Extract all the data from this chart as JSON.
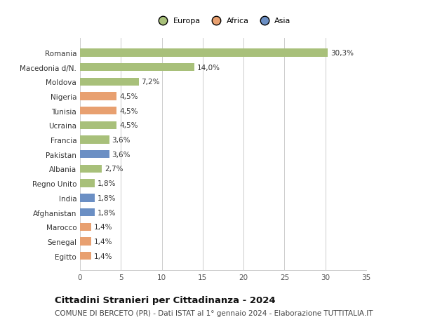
{
  "title": "Cittadini Stranieri per Cittadinanza - 2024",
  "subtitle": "COMUNE DI BERCETO (PR) - Dati ISTAT al 1° gennaio 2024 - Elaborazione TUTTITALIA.IT",
  "countries": [
    "Romania",
    "Macedonia d/N.",
    "Moldova",
    "Nigeria",
    "Tunisia",
    "Ucraina",
    "Francia",
    "Pakistan",
    "Albania",
    "Regno Unito",
    "India",
    "Afghanistan",
    "Marocco",
    "Senegal",
    "Egitto"
  ],
  "values": [
    30.3,
    14.0,
    7.2,
    4.5,
    4.5,
    4.5,
    3.6,
    3.6,
    2.7,
    1.8,
    1.8,
    1.8,
    1.4,
    1.4,
    1.4
  ],
  "labels": [
    "30,3%",
    "14,0%",
    "7,2%",
    "4,5%",
    "4,5%",
    "4,5%",
    "3,6%",
    "3,6%",
    "2,7%",
    "1,8%",
    "1,8%",
    "1,8%",
    "1,4%",
    "1,4%",
    "1,4%"
  ],
  "continents": [
    "Europa",
    "Europa",
    "Europa",
    "Africa",
    "Africa",
    "Europa",
    "Europa",
    "Asia",
    "Europa",
    "Europa",
    "Asia",
    "Asia",
    "Africa",
    "Africa",
    "Africa"
  ],
  "continent_colors": {
    "Europa": "#a8c07a",
    "Africa": "#e8a070",
    "Asia": "#6b8fc4"
  },
  "legend_items": [
    {
      "label": "Europa",
      "color": "#a8c07a"
    },
    {
      "label": "Africa",
      "color": "#e8a070"
    },
    {
      "label": "Asia",
      "color": "#6b8fc4"
    }
  ],
  "xlim": [
    0,
    35
  ],
  "xticks": [
    0,
    5,
    10,
    15,
    20,
    25,
    30,
    35
  ],
  "background_color": "#ffffff",
  "grid_color": "#cccccc",
  "bar_height": 0.55,
  "label_fontsize": 7.5,
  "tick_fontsize": 7.5,
  "title_fontsize": 9.5,
  "subtitle_fontsize": 7.5
}
